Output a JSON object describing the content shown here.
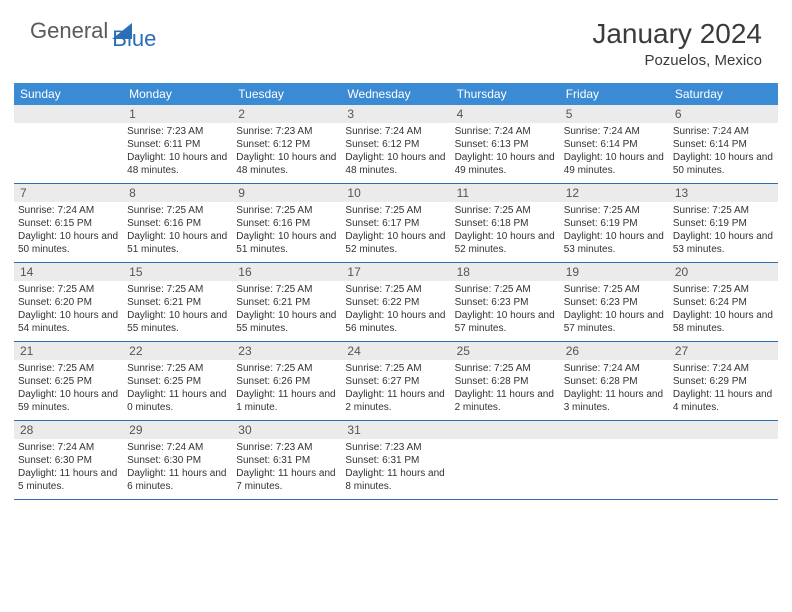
{
  "logo": {
    "general": "General",
    "blue": "Blue"
  },
  "title": "January 2024",
  "location": "Pozuelos, Mexico",
  "colors": {
    "header_bg": "#3b8bd4",
    "daynum_bg": "#ebebeb",
    "accent_line": "#2a6fb5",
    "text": "#333333",
    "logo_blue": "#2a6fb5"
  },
  "dayNames": [
    "Sunday",
    "Monday",
    "Tuesday",
    "Wednesday",
    "Thursday",
    "Friday",
    "Saturday"
  ],
  "weeks": [
    {
      "nums": [
        "",
        "1",
        "2",
        "3",
        "4",
        "5",
        "6"
      ],
      "cells": [
        null,
        {
          "sunrise": "7:23 AM",
          "sunset": "6:11 PM",
          "daylight": "10 hours and 48 minutes."
        },
        {
          "sunrise": "7:23 AM",
          "sunset": "6:12 PM",
          "daylight": "10 hours and 48 minutes."
        },
        {
          "sunrise": "7:24 AM",
          "sunset": "6:12 PM",
          "daylight": "10 hours and 48 minutes."
        },
        {
          "sunrise": "7:24 AM",
          "sunset": "6:13 PM",
          "daylight": "10 hours and 49 minutes."
        },
        {
          "sunrise": "7:24 AM",
          "sunset": "6:14 PM",
          "daylight": "10 hours and 49 minutes."
        },
        {
          "sunrise": "7:24 AM",
          "sunset": "6:14 PM",
          "daylight": "10 hours and 50 minutes."
        }
      ]
    },
    {
      "nums": [
        "7",
        "8",
        "9",
        "10",
        "11",
        "12",
        "13"
      ],
      "cells": [
        {
          "sunrise": "7:24 AM",
          "sunset": "6:15 PM",
          "daylight": "10 hours and 50 minutes."
        },
        {
          "sunrise": "7:25 AM",
          "sunset": "6:16 PM",
          "daylight": "10 hours and 51 minutes."
        },
        {
          "sunrise": "7:25 AM",
          "sunset": "6:16 PM",
          "daylight": "10 hours and 51 minutes."
        },
        {
          "sunrise": "7:25 AM",
          "sunset": "6:17 PM",
          "daylight": "10 hours and 52 minutes."
        },
        {
          "sunrise": "7:25 AM",
          "sunset": "6:18 PM",
          "daylight": "10 hours and 52 minutes."
        },
        {
          "sunrise": "7:25 AM",
          "sunset": "6:19 PM",
          "daylight": "10 hours and 53 minutes."
        },
        {
          "sunrise": "7:25 AM",
          "sunset": "6:19 PM",
          "daylight": "10 hours and 53 minutes."
        }
      ]
    },
    {
      "nums": [
        "14",
        "15",
        "16",
        "17",
        "18",
        "19",
        "20"
      ],
      "cells": [
        {
          "sunrise": "7:25 AM",
          "sunset": "6:20 PM",
          "daylight": "10 hours and 54 minutes."
        },
        {
          "sunrise": "7:25 AM",
          "sunset": "6:21 PM",
          "daylight": "10 hours and 55 minutes."
        },
        {
          "sunrise": "7:25 AM",
          "sunset": "6:21 PM",
          "daylight": "10 hours and 55 minutes."
        },
        {
          "sunrise": "7:25 AM",
          "sunset": "6:22 PM",
          "daylight": "10 hours and 56 minutes."
        },
        {
          "sunrise": "7:25 AM",
          "sunset": "6:23 PM",
          "daylight": "10 hours and 57 minutes."
        },
        {
          "sunrise": "7:25 AM",
          "sunset": "6:23 PM",
          "daylight": "10 hours and 57 minutes."
        },
        {
          "sunrise": "7:25 AM",
          "sunset": "6:24 PM",
          "daylight": "10 hours and 58 minutes."
        }
      ]
    },
    {
      "nums": [
        "21",
        "22",
        "23",
        "24",
        "25",
        "26",
        "27"
      ],
      "cells": [
        {
          "sunrise": "7:25 AM",
          "sunset": "6:25 PM",
          "daylight": "10 hours and 59 minutes."
        },
        {
          "sunrise": "7:25 AM",
          "sunset": "6:25 PM",
          "daylight": "11 hours and 0 minutes."
        },
        {
          "sunrise": "7:25 AM",
          "sunset": "6:26 PM",
          "daylight": "11 hours and 1 minute."
        },
        {
          "sunrise": "7:25 AM",
          "sunset": "6:27 PM",
          "daylight": "11 hours and 2 minutes."
        },
        {
          "sunrise": "7:25 AM",
          "sunset": "6:28 PM",
          "daylight": "11 hours and 2 minutes."
        },
        {
          "sunrise": "7:24 AM",
          "sunset": "6:28 PM",
          "daylight": "11 hours and 3 minutes."
        },
        {
          "sunrise": "7:24 AM",
          "sunset": "6:29 PM",
          "daylight": "11 hours and 4 minutes."
        }
      ]
    },
    {
      "nums": [
        "28",
        "29",
        "30",
        "31",
        "",
        "",
        ""
      ],
      "cells": [
        {
          "sunrise": "7:24 AM",
          "sunset": "6:30 PM",
          "daylight": "11 hours and 5 minutes."
        },
        {
          "sunrise": "7:24 AM",
          "sunset": "6:30 PM",
          "daylight": "11 hours and 6 minutes."
        },
        {
          "sunrise": "7:23 AM",
          "sunset": "6:31 PM",
          "daylight": "11 hours and 7 minutes."
        },
        {
          "sunrise": "7:23 AM",
          "sunset": "6:31 PM",
          "daylight": "11 hours and 8 minutes."
        },
        null,
        null,
        null
      ]
    }
  ],
  "labels": {
    "sunrise": "Sunrise:",
    "sunset": "Sunset:",
    "daylight": "Daylight:"
  }
}
